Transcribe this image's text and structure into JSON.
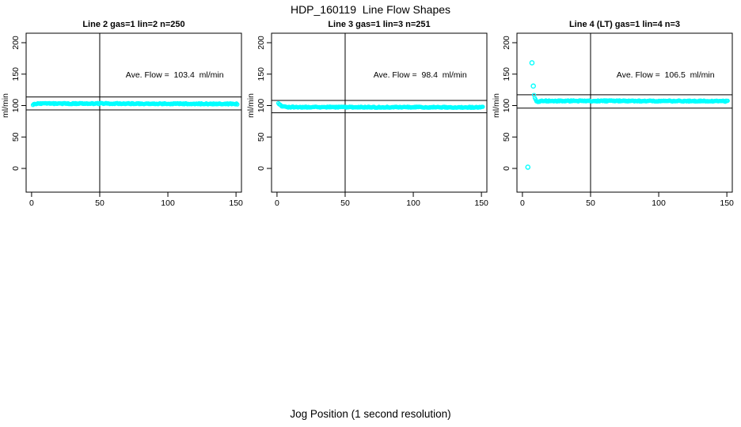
{
  "page": {
    "title": "HDP_160119  Line Flow Shapes",
    "xlabel": "Jog Position (1 second resolution)",
    "background": "#ffffff",
    "axis_color": "#000000"
  },
  "chart_data": [
    {
      "type": "scatter",
      "title": "Line 2 gas=1 lin=2 n=250",
      "n": 250,
      "ave_flow": 103.4,
      "annotation": "Ave. Flow =  103.4  ml/min",
      "ylabel": "ml/min",
      "point_color": "#00ffff",
      "x_ticks": [
        0,
        50,
        100,
        150
      ],
      "y_ticks": [
        0,
        50,
        100,
        150,
        200
      ],
      "xlim": [
        -4,
        154
      ],
      "ylim": [
        -38,
        215
      ],
      "ref_lines_h": [
        113.7,
        93.1
      ],
      "ref_line_v": 50,
      "band": {
        "keypoints": [
          [
            1,
            100.3
          ],
          [
            2,
            102.5
          ],
          [
            5,
            103.1
          ],
          [
            60,
            103.2
          ],
          [
            110,
            102.9
          ],
          [
            151,
            102.6
          ]
        ],
        "x_start": 1,
        "x_end": 151,
        "step": 0.6,
        "jitter": 0.8
      },
      "outliers": []
    },
    {
      "type": "scatter",
      "title": "Line 3 gas=1 lin=3 n=251",
      "n": 251,
      "ave_flow": 98.4,
      "annotation": "Ave. Flow =  98.4  ml/min",
      "ylabel": "ml/min",
      "point_color": "#00ffff",
      "x_ticks": [
        0,
        50,
        100,
        150
      ],
      "y_ticks": [
        0,
        50,
        100,
        150,
        200
      ],
      "xlim": [
        -4,
        154
      ],
      "ylim": [
        -38,
        215
      ],
      "ref_lines_h": [
        108.2,
        88.6
      ],
      "ref_line_v": 50,
      "band": {
        "keypoints": [
          [
            1,
            103.3
          ],
          [
            2,
            101.5
          ],
          [
            3,
            99.5
          ],
          [
            5,
            98.2
          ],
          [
            8,
            97.6
          ],
          [
            60,
            97.4
          ],
          [
            151,
            97.3
          ]
        ],
        "x_start": 1,
        "x_end": 151,
        "step": 0.6,
        "jitter": 0.8
      },
      "outliers": []
    },
    {
      "type": "scatter",
      "title": "Line 4 (LT) gas=1 lin=4 n=3",
      "n": 3,
      "ave_flow": 106.5,
      "annotation": "Ave. Flow =  106.5  ml/min",
      "ylabel": "ml/min",
      "point_color": "#00ffff",
      "x_ticks": [
        0,
        50,
        100,
        150
      ],
      "y_ticks": [
        0,
        50,
        100,
        150,
        200
      ],
      "xlim": [
        -4,
        154
      ],
      "ylim": [
        -38,
        215
      ],
      "ref_lines_h": [
        117.2,
        95.9
      ],
      "ref_line_v": 50,
      "band": {
        "keypoints": [
          [
            8.5,
            116
          ],
          [
            9.5,
            110
          ],
          [
            10.5,
            106.2
          ],
          [
            12,
            106.3
          ],
          [
            15,
            107.4
          ],
          [
            60,
            107.4
          ],
          [
            110,
            107.2
          ],
          [
            151,
            107.0
          ]
        ],
        "x_start": 8.5,
        "x_end": 151,
        "step": 0.58,
        "jitter": 0.9
      },
      "outliers": [
        [
          4,
          2
        ],
        [
          7,
          168
        ],
        [
          8,
          131
        ]
      ]
    }
  ]
}
